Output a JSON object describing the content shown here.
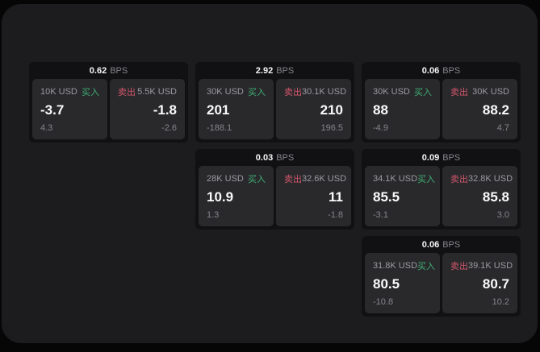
{
  "labels": {
    "bps_unit": "BPS",
    "buy": "买入",
    "sell": "卖出"
  },
  "colors": {
    "buy_green": "#3fae73",
    "sell_red": "#d1566a",
    "surface": "#1c1c1e",
    "card": "#111113",
    "panel": "#29292c"
  },
  "cards": [
    {
      "bps": "0.62",
      "buy": {
        "amount": "10K USD",
        "value": "-3.7",
        "delta": "4.3"
      },
      "sell": {
        "amount": "5.5K USD",
        "value": "-1.8",
        "delta": "-2.6"
      }
    },
    {
      "bps": "2.92",
      "buy": {
        "amount": "30K USD",
        "value": "201",
        "delta": "-188.1"
      },
      "sell": {
        "amount": "30.1K USD",
        "value": "210",
        "delta": "196.5"
      }
    },
    {
      "bps": "0.06",
      "buy": {
        "amount": "30K USD",
        "value": "88",
        "delta": "-4.9"
      },
      "sell": {
        "amount": "30K USD",
        "value": "88.2",
        "delta": "4.7"
      }
    },
    {
      "bps": "0.03",
      "buy": {
        "amount": "28K USD",
        "value": "10.9",
        "delta": "1.3"
      },
      "sell": {
        "amount": "32.6K USD",
        "value": "11",
        "delta": "-1.8"
      }
    },
    {
      "bps": "0.09",
      "buy": {
        "amount": "34.1K USD",
        "value": "85.5",
        "delta": "-3.1"
      },
      "sell": {
        "amount": "32.8K USD",
        "value": "85.8",
        "delta": "3.0"
      }
    },
    {
      "bps": "0.06",
      "buy": {
        "amount": "31.8K USD",
        "value": "80.5",
        "delta": "-10.8"
      },
      "sell": {
        "amount": "39.1K USD",
        "value": "80.7",
        "delta": "10.2"
      }
    }
  ]
}
